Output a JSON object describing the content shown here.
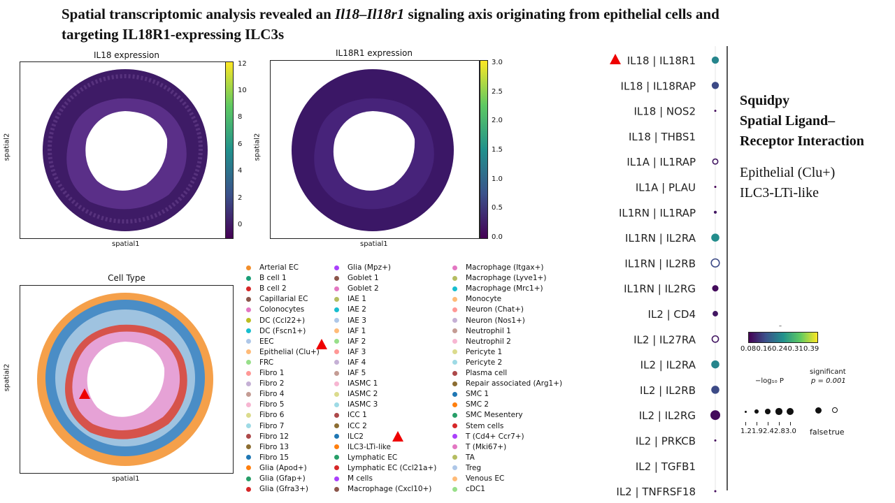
{
  "title": {
    "part1": "Spatial transcriptomic analysis revealed an ",
    "italic": "Il18–Il18r1",
    "part2": " signaling axis originating from epithelial cells and targeting IL18R1-expressing ILC3s"
  },
  "panels": {
    "il18": {
      "title": "IL18 expression",
      "xlabel": "spatial1",
      "ylabel": "spatial2",
      "cbar_ticks": [
        "0",
        "2",
        "4",
        "6",
        "8",
        "10",
        "12"
      ]
    },
    "il18r1": {
      "title": "IL18R1 expression",
      "xlabel": "spatial1",
      "ylabel": "spatial2",
      "cbar_ticks": [
        "0.0",
        "0.5",
        "1.0",
        "1.5",
        "2.0",
        "2.5",
        "3.0"
      ]
    },
    "celltype": {
      "title": "Cell Type",
      "xlabel": "spatial1",
      "ylabel": "spatial2"
    }
  },
  "legend": [
    {
      "label": "Arterial EC",
      "color": "#f28e2b"
    },
    {
      "label": "B cell 1",
      "color": "#1a9e77"
    },
    {
      "label": "B cell 2",
      "color": "#d62728"
    },
    {
      "label": "Capillarial EC",
      "color": "#8c564b"
    },
    {
      "label": "Colonocytes",
      "color": "#e377c2"
    },
    {
      "label": "DC (Ccl22+)",
      "color": "#bcbd22"
    },
    {
      "label": "DC (Fscn1+)",
      "color": "#17becf"
    },
    {
      "label": "EEC",
      "color": "#aec7e8"
    },
    {
      "label": "Epithelial (Clu+)",
      "color": "#ffbb78"
    },
    {
      "label": "FRC",
      "color": "#98df8a"
    },
    {
      "label": "Fibro 1",
      "color": "#ff9896"
    },
    {
      "label": "Fibro 2",
      "color": "#c5b0d5"
    },
    {
      "label": "Fibro 4",
      "color": "#c49c94"
    },
    {
      "label": "Fibro 5",
      "color": "#f7b6d2"
    },
    {
      "label": "Fibro 6",
      "color": "#dbdb8d"
    },
    {
      "label": "Fibro 7",
      "color": "#9edae5"
    },
    {
      "label": "Fibro 12",
      "color": "#ad494a"
    },
    {
      "label": "Fibro 13",
      "color": "#8c6d31"
    },
    {
      "label": "Fibro 15",
      "color": "#1f77b4"
    },
    {
      "label": "Glia (Apod+)",
      "color": "#ff7f0e"
    },
    {
      "label": "Glia (Gfap+)",
      "color": "#279e68"
    },
    {
      "label": "Glia (Gfra3+)",
      "color": "#d62728"
    },
    {
      "label": "Glia (Mpz+)",
      "color": "#aa40fc"
    },
    {
      "label": "Goblet 1",
      "color": "#8c564b"
    },
    {
      "label": "Goblet 2",
      "color": "#e377c2"
    },
    {
      "label": "IAE 1",
      "color": "#b5bd61"
    },
    {
      "label": "IAE 2",
      "color": "#17becf"
    },
    {
      "label": "IAE 3",
      "color": "#aec7e8"
    },
    {
      "label": "IAF 1",
      "color": "#ffbb78"
    },
    {
      "label": "IAF 2",
      "color": "#98df8a"
    },
    {
      "label": "IAF 3",
      "color": "#ff9896"
    },
    {
      "label": "IAF 4",
      "color": "#c5b0d5"
    },
    {
      "label": "IAF 5",
      "color": "#c49c94"
    },
    {
      "label": "IASMC 1",
      "color": "#f7b6d2"
    },
    {
      "label": "IASMC 2",
      "color": "#dbdb8d"
    },
    {
      "label": "IASMC 3",
      "color": "#9edae5"
    },
    {
      "label": "ICC 1",
      "color": "#ad494a"
    },
    {
      "label": "ICC 2",
      "color": "#8c6d31"
    },
    {
      "label": "ILC2",
      "color": "#1f77b4"
    },
    {
      "label": "ILC3-LTi-like",
      "color": "#ff7f0e"
    },
    {
      "label": "Lymphatic EC",
      "color": "#279e68"
    },
    {
      "label": "Lymphatic EC (Ccl21a+)",
      "color": "#d62728"
    },
    {
      "label": "M cells",
      "color": "#aa40fc"
    },
    {
      "label": "Macrophage (Cxcl10+)",
      "color": "#8c564b"
    },
    {
      "label": "Macrophage (Itgax+)",
      "color": "#e377c2"
    },
    {
      "label": "Macrophage (Lyve1+)",
      "color": "#b5bd61"
    },
    {
      "label": "Macrophage (Mrc1+)",
      "color": "#17becf"
    },
    {
      "label": "Monocyte",
      "color": "#ffbb78"
    },
    {
      "label": "Neuron (Chat+)",
      "color": "#ff9896"
    },
    {
      "label": "Neuron (Nos1+)",
      "color": "#c5b0d5"
    },
    {
      "label": "Neutrophil 1",
      "color": "#c49c94"
    },
    {
      "label": "Neutrophil 2",
      "color": "#f7b6d2"
    },
    {
      "label": "Pericyte 1",
      "color": "#dbdb8d"
    },
    {
      "label": "Pericyte 2",
      "color": "#9edae5"
    },
    {
      "label": "Plasma cell",
      "color": "#ad494a"
    },
    {
      "label": "Repair associated  (Arg1+)",
      "color": "#8c6d31"
    },
    {
      "label": "SMC 1",
      "color": "#1f77b4"
    },
    {
      "label": "SMC 2",
      "color": "#ff7f0e"
    },
    {
      "label": "SMC Mesentery",
      "color": "#279e68"
    },
    {
      "label": "Stem cells",
      "color": "#d62728"
    },
    {
      "label": "T (Cd4+ Ccr7+)",
      "color": "#aa40fc"
    },
    {
      "label": "T (Mki67+)",
      "color": "#e377c2"
    },
    {
      "label": "TA",
      "color": "#b5bd61"
    },
    {
      "label": "Treg",
      "color": "#aec7e8"
    },
    {
      "label": "Venous EC",
      "color": "#ffbb78"
    },
    {
      "label": "cDC1",
      "color": "#98df8a"
    }
  ],
  "chart_data": {
    "type": "scatter",
    "pairs": [
      {
        "label": "IL18 | IL18R1",
        "mean": 0.22,
        "neglog10p": 2.4,
        "significant": true
      },
      {
        "label": "IL18 | IL18RAP",
        "mean": 0.15,
        "neglog10p": 2.4,
        "significant": true
      },
      {
        "label": "IL18 | NOS2",
        "mean": 0.09,
        "neglog10p": 1.2,
        "significant": true
      },
      {
        "label": "IL18 | THBS1",
        "mean": null,
        "neglog10p": null,
        "significant": false
      },
      {
        "label": "IL1A | IL1RAP",
        "mean": 0.1,
        "neglog10p": 1.9,
        "significant": false
      },
      {
        "label": "IL1A | PLAU",
        "mean": 0.08,
        "neglog10p": 1.2,
        "significant": true
      },
      {
        "label": "IL1RN | IL1RAP",
        "mean": 0.1,
        "neglog10p": 1.4,
        "significant": true
      },
      {
        "label": "IL1RN | IL2RA",
        "mean": 0.23,
        "neglog10p": 2.6,
        "significant": true
      },
      {
        "label": "IL1RN | IL2RB",
        "mean": 0.15,
        "neglog10p": 2.6,
        "significant": false
      },
      {
        "label": "IL1RN | IL2RG",
        "mean": 0.09,
        "neglog10p": 2.2,
        "significant": true
      },
      {
        "label": "IL2 | CD4",
        "mean": 0.1,
        "neglog10p": 2.0,
        "significant": true
      },
      {
        "label": "IL2 | IL27RA",
        "mean": 0.1,
        "neglog10p": 2.2,
        "significant": false
      },
      {
        "label": "IL2 | IL2RA",
        "mean": 0.22,
        "neglog10p": 2.6,
        "significant": true
      },
      {
        "label": "IL2 | IL2RB",
        "mean": 0.15,
        "neglog10p": 2.6,
        "significant": true
      },
      {
        "label": "IL2 | IL2RG",
        "mean": 0.09,
        "neglog10p": 3.0,
        "significant": true
      },
      {
        "label": "IL2 | PRKCB",
        "mean": 0.09,
        "neglog10p": 1.2,
        "significant": true
      },
      {
        "label": "IL2 | TGFB1",
        "mean": null,
        "neglog10p": null,
        "significant": false
      },
      {
        "label": "IL2 | TNFRSF18",
        "mean": 0.09,
        "neglog10p": 1.2,
        "significant": true
      }
    ],
    "colorbar": {
      "title": "–",
      "ticks": [
        "0.08",
        "0.16",
        "0.24",
        "0.31",
        "0.39"
      ],
      "range": [
        0.08,
        0.39
      ]
    },
    "size_legend": {
      "title": "−log₁₀ P",
      "ticks": [
        "1.2",
        "1.9",
        "2.4",
        "2.8",
        "3.0"
      ]
    },
    "significance_legend": {
      "title": "significant",
      "subtitle": "p = 0.001",
      "labels": [
        "false",
        "true"
      ]
    }
  },
  "annotation": {
    "title1": "Squidpy",
    "title2": "Spatial Ligand–",
    "title3": "Receptor Interaction",
    "line1": "Epithelial (Clu+)",
    "line2": "ILC3-LTi-like"
  }
}
